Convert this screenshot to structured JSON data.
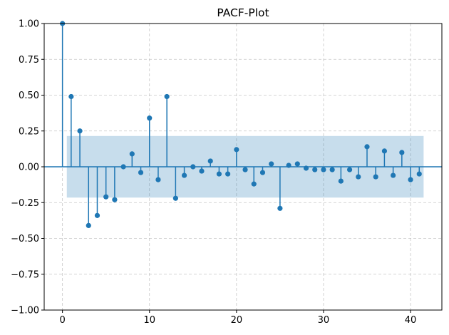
{
  "chart_data": {
    "type": "stem",
    "title": "PACF-Plot",
    "xlabel": "",
    "ylabel": "",
    "xlim": [
      -2.1,
      43.6
    ],
    "ylim": [
      -1.0,
      1.0
    ],
    "x_ticks": [
      0,
      10,
      20,
      30,
      40
    ],
    "y_ticks": [
      -1.0,
      -0.75,
      -0.5,
      -0.25,
      0.0,
      0.25,
      0.5,
      0.75,
      1.0
    ],
    "x_tick_labels": [
      "0",
      "10",
      "20",
      "30",
      "40"
    ],
    "y_tick_labels": [
      "−1.00",
      "−0.75",
      "−0.50",
      "−0.25",
      "0.00",
      "0.25",
      "0.50",
      "0.75",
      "1.00"
    ],
    "grid": true,
    "grid_style": "dashed",
    "confidence_band": {
      "lower": -0.215,
      "upper": 0.215,
      "x_start": 0.5,
      "x_end": 41.5
    },
    "lags": [
      0,
      1,
      2,
      3,
      4,
      5,
      6,
      7,
      8,
      9,
      10,
      11,
      12,
      13,
      14,
      15,
      16,
      17,
      18,
      19,
      20,
      21,
      22,
      23,
      24,
      25,
      26,
      27,
      28,
      29,
      30,
      31,
      32,
      33,
      34,
      35,
      36,
      37,
      38,
      39,
      40,
      41
    ],
    "values": [
      1.0,
      0.49,
      0.25,
      -0.41,
      -0.34,
      -0.21,
      -0.23,
      0.0,
      0.09,
      -0.04,
      0.34,
      -0.09,
      0.49,
      -0.22,
      -0.06,
      0.0,
      -0.03,
      0.04,
      -0.05,
      -0.05,
      0.12,
      -0.02,
      -0.12,
      -0.04,
      0.02,
      -0.29,
      0.01,
      0.02,
      -0.01,
      -0.02,
      -0.02,
      -0.02,
      -0.1,
      -0.02,
      -0.07,
      0.14,
      -0.07,
      0.11,
      -0.06,
      0.1,
      -0.09,
      -0.05
    ],
    "colors": {
      "stem": "#1f77b4",
      "band": "#1f77b4",
      "grid": "#b0b0b0",
      "axis": "#000000"
    }
  }
}
